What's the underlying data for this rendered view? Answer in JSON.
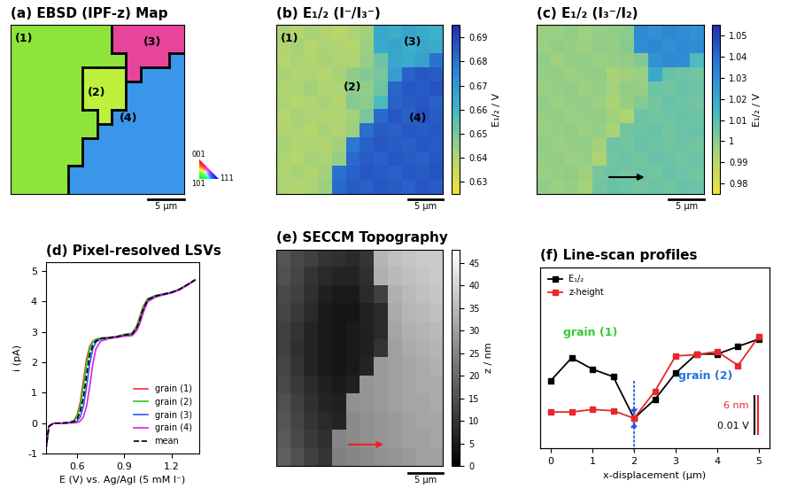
{
  "chart_data": [
    {
      "type": "heatmap",
      "title": "(a) EBSD (IPF-z) Map",
      "cells": [
        [
          1,
          1,
          1,
          1,
          1,
          1,
          1,
          3,
          3,
          3,
          3,
          3
        ],
        [
          1,
          1,
          1,
          1,
          1,
          1,
          1,
          3,
          3,
          3,
          3,
          3
        ],
        [
          1,
          1,
          1,
          1,
          1,
          1,
          1,
          1,
          3,
          3,
          3,
          4
        ],
        [
          1,
          1,
          1,
          1,
          1,
          2,
          2,
          2,
          3,
          4,
          4,
          4
        ],
        [
          1,
          1,
          1,
          1,
          1,
          2,
          2,
          2,
          4,
          4,
          4,
          4
        ],
        [
          1,
          1,
          1,
          1,
          1,
          2,
          2,
          2,
          4,
          4,
          4,
          4
        ],
        [
          1,
          1,
          1,
          1,
          1,
          1,
          2,
          4,
          4,
          4,
          4,
          4
        ],
        [
          1,
          1,
          1,
          1,
          1,
          1,
          4,
          4,
          4,
          4,
          4,
          4
        ],
        [
          1,
          1,
          1,
          1,
          1,
          4,
          4,
          4,
          4,
          4,
          4,
          4
        ],
        [
          1,
          1,
          1,
          1,
          1,
          4,
          4,
          4,
          4,
          4,
          4,
          4
        ],
        [
          1,
          1,
          1,
          1,
          4,
          4,
          4,
          4,
          4,
          4,
          4,
          4
        ],
        [
          1,
          1,
          1,
          1,
          4,
          4,
          4,
          4,
          4,
          4,
          4,
          4
        ]
      ],
      "colors": [
        "#8fe43c",
        "#bff03d",
        "#e6459b",
        "#3a96e8"
      ],
      "grain_labels": [
        "(1)",
        "(2)",
        "(3)",
        "(4)"
      ],
      "ipf_key": [
        "001",
        "101",
        "111"
      ],
      "xlim": [
        0,
        24
      ],
      "ylim": [
        0,
        22
      ],
      "tick_labels": false,
      "scale_bar": {
        "value": 5,
        "label": "5 μm"
      }
    },
    {
      "type": "heatmap",
      "title": "(b) E₁/₂ (I⁻/I₃⁻)",
      "cells": [
        [
          0.641,
          0.639,
          0.642,
          0.64,
          0.638,
          0.641,
          0.643,
          0.665,
          0.663,
          0.666,
          0.664,
          0.662
        ],
        [
          0.64,
          0.642,
          0.639,
          0.641,
          0.64,
          0.639,
          0.644,
          0.664,
          0.666,
          0.663,
          0.665,
          0.664
        ],
        [
          0.639,
          0.641,
          0.64,
          0.642,
          0.641,
          0.64,
          0.645,
          0.652,
          0.665,
          0.664,
          0.667,
          0.68
        ],
        [
          0.642,
          0.64,
          0.641,
          0.639,
          0.642,
          0.646,
          0.648,
          0.65,
          0.668,
          0.684,
          0.686,
          0.685
        ],
        [
          0.64,
          0.641,
          0.643,
          0.64,
          0.641,
          0.647,
          0.646,
          0.652,
          0.683,
          0.686,
          0.685,
          0.687
        ],
        [
          0.641,
          0.639,
          0.64,
          0.642,
          0.64,
          0.648,
          0.647,
          0.658,
          0.684,
          0.685,
          0.686,
          0.684
        ],
        [
          0.639,
          0.642,
          0.641,
          0.64,
          0.641,
          0.643,
          0.65,
          0.682,
          0.686,
          0.684,
          0.687,
          0.685
        ],
        [
          0.64,
          0.641,
          0.639,
          0.642,
          0.64,
          0.644,
          0.681,
          0.685,
          0.684,
          0.686,
          0.685,
          0.686
        ],
        [
          0.642,
          0.64,
          0.641,
          0.64,
          0.643,
          0.679,
          0.684,
          0.686,
          0.685,
          0.684,
          0.686,
          0.685
        ],
        [
          0.641,
          0.639,
          0.642,
          0.641,
          0.645,
          0.682,
          0.685,
          0.684,
          0.686,
          0.685,
          0.684,
          0.686
        ],
        [
          0.64,
          0.642,
          0.64,
          0.643,
          0.68,
          0.684,
          0.686,
          0.685,
          0.684,
          0.686,
          0.685,
          0.687
        ],
        [
          0.641,
          0.64,
          0.641,
          0.644,
          0.682,
          0.685,
          0.684,
          0.686,
          0.685,
          0.684,
          0.686,
          0.685
        ]
      ],
      "colorbar": {
        "label": "E₁/₂ / V",
        "range": [
          0.625,
          0.695
        ],
        "ticks": [
          0.63,
          0.64,
          0.65,
          0.66,
          0.67,
          0.68,
          0.69
        ]
      },
      "grain_labels": [
        "(1)",
        "(2)",
        "(3)",
        "(4)"
      ],
      "xlim": [
        0,
        24
      ],
      "ylim": [
        0,
        22
      ],
      "tick_labels": false,
      "scale_bar": {
        "value": 5,
        "label": "5 μm"
      }
    },
    {
      "type": "heatmap",
      "title": "(c) E₁/₂ (I₃⁻/I₂)",
      "cells": [
        [
          0.998,
          0.997,
          0.999,
          0.996,
          0.998,
          0.999,
          1.0,
          1.031,
          1.029,
          1.032,
          1.03,
          1.028
        ],
        [
          0.997,
          0.999,
          0.998,
          0.997,
          0.999,
          0.998,
          1.001,
          1.03,
          1.032,
          1.029,
          1.031,
          1.03
        ],
        [
          0.999,
          0.996,
          0.998,
          0.999,
          0.997,
          0.998,
          0.999,
          1.002,
          1.028,
          1.031,
          1.03,
          1.012
        ],
        [
          0.998,
          0.999,
          0.997,
          0.998,
          0.999,
          0.994,
          0.996,
          0.997,
          1.02,
          1.007,
          1.006,
          1.005
        ],
        [
          0.997,
          0.998,
          0.999,
          0.997,
          0.998,
          0.995,
          0.999,
          0.998,
          1.006,
          1.005,
          1.007,
          1.006
        ],
        [
          0.999,
          0.997,
          0.998,
          0.999,
          0.997,
          0.994,
          0.998,
          1.001,
          1.005,
          1.007,
          1.006,
          1.005
        ],
        [
          0.998,
          0.999,
          0.997,
          0.998,
          0.999,
          0.996,
          0.993,
          1.006,
          1.005,
          1.006,
          1.007,
          1.006
        ],
        [
          0.997,
          0.998,
          0.999,
          0.997,
          0.998,
          0.994,
          1.005,
          1.006,
          1.007,
          1.005,
          1.006,
          1.007
        ],
        [
          0.999,
          0.997,
          0.998,
          0.999,
          0.995,
          1.006,
          1.005,
          1.007,
          1.006,
          1.005,
          1.006,
          1.005
        ],
        [
          0.998,
          0.999,
          0.997,
          0.998,
          0.993,
          1.005,
          1.006,
          1.005,
          1.007,
          1.006,
          1.005,
          1.006
        ],
        [
          0.997,
          0.998,
          0.999,
          0.996,
          1.004,
          1.006,
          1.005,
          1.006,
          1.005,
          1.007,
          1.006,
          1.005
        ],
        [
          0.999,
          0.997,
          0.998,
          0.995,
          1.005,
          1.007,
          1.006,
          1.005,
          1.006,
          1.005,
          1.007,
          1.006
        ]
      ],
      "colorbar": {
        "label": "E₁/₂ / V",
        "range": [
          0.975,
          1.055
        ],
        "ticks": [
          0.98,
          0.99,
          1,
          1.01,
          1.02,
          1.03,
          1.04,
          1.05
        ]
      },
      "xlim": [
        0,
        24
      ],
      "ylim": [
        0,
        22
      ],
      "tick_labels": false,
      "scale_bar": {
        "value": 5,
        "label": "5 μm"
      }
    },
    {
      "type": "line",
      "title": "(d) Pixel-resolved LSVs",
      "x_label": "E (V) vs. Ag/AgI (5 mM I⁻)",
      "y_label": "i (pA)",
      "x": [
        0.4,
        0.42,
        0.45,
        0.5,
        0.55,
        0.58,
        0.6,
        0.62,
        0.64,
        0.66,
        0.68,
        0.7,
        0.72,
        0.75,
        0.8,
        0.85,
        0.9,
        0.95,
        0.98,
        1.0,
        1.02,
        1.05,
        1.1,
        1.15,
        1.2,
        1.25,
        1.3,
        1.35
      ],
      "series": [
        {
          "name": "grain (1)",
          "color": "#ff2a2a",
          "line_style": "solid",
          "values": [
            -0.9,
            -0.1,
            0,
            0,
            0.02,
            0.1,
            0.27,
            0.69,
            1.4,
            2.11,
            2.53,
            2.7,
            2.76,
            2.8,
            2.82,
            2.85,
            2.92,
            2.96,
            3.2,
            3.52,
            3.84,
            4.1,
            4.2,
            4.25,
            4.3,
            4.4,
            4.55,
            4.7
          ]
        },
        {
          "name": "grain (2)",
          "color": "#22cc22",
          "line_style": "solid",
          "values": [
            -0.9,
            -0.1,
            0,
            0,
            0.02,
            0.08,
            0.21,
            0.56,
            1.22,
            1.97,
            2.46,
            2.68,
            2.76,
            2.8,
            2.82,
            2.85,
            2.91,
            2.95,
            3.18,
            3.5,
            3.82,
            4.09,
            4.2,
            4.25,
            4.3,
            4.4,
            4.55,
            4.7
          ]
        },
        {
          "name": "grain (3)",
          "color": "#3355ff",
          "line_style": "solid",
          "values": [
            -0.9,
            -0.1,
            0,
            0,
            0.01,
            0.02,
            0.07,
            0.21,
            0.56,
            1.21,
            1.95,
            2.45,
            2.67,
            2.77,
            2.8,
            2.83,
            2.88,
            2.9,
            3.1,
            3.35,
            3.7,
            4.05,
            4.18,
            4.24,
            4.3,
            4.4,
            4.55,
            4.72
          ]
        },
        {
          "name": "grain (4)",
          "color": "#dd22dd",
          "line_style": "solid",
          "values": [
            -0.9,
            -0.1,
            0,
            0,
            0.01,
            0.01,
            0.02,
            0.07,
            0.21,
            0.56,
            1.21,
            1.95,
            2.45,
            2.7,
            2.78,
            2.82,
            2.86,
            2.88,
            3.05,
            3.28,
            3.62,
            4.0,
            4.15,
            4.22,
            4.28,
            4.38,
            4.53,
            4.7
          ]
        },
        {
          "name": "mean",
          "color": "#000000",
          "line_style": "dashed",
          "values": [
            -0.9,
            -0.1,
            0,
            0,
            0.02,
            0.05,
            0.14,
            0.38,
            0.85,
            1.6,
            2.25,
            2.58,
            2.71,
            2.78,
            2.81,
            2.84,
            2.9,
            2.93,
            3.14,
            3.42,
            3.75,
            4.06,
            4.18,
            4.24,
            4.3,
            4.4,
            4.55,
            4.71
          ]
        }
      ],
      "xlim": [
        0.4,
        1.38
      ],
      "ylim": [
        -1,
        5.3
      ],
      "xticks": [
        0.6,
        0.9,
        1.2
      ],
      "yticks": [
        -1,
        0,
        1,
        2,
        3,
        4,
        5
      ],
      "legend": "lower right"
    },
    {
      "type": "heatmap",
      "title": "(e) SECCM Topography",
      "cells": [
        [
          16,
          14,
          12,
          10,
          9,
          8,
          10,
          34,
          36,
          37,
          38,
          38
        ],
        [
          15,
          13,
          10,
          8,
          7,
          7,
          9,
          33,
          35,
          36,
          37,
          38
        ],
        [
          14,
          12,
          9,
          6,
          5,
          5,
          8,
          12,
          33,
          35,
          36,
          37
        ],
        [
          13,
          11,
          8,
          5,
          4,
          4,
          6,
          8,
          32,
          34,
          35,
          36
        ],
        [
          12,
          10,
          7,
          5,
          4,
          5,
          6,
          8,
          31,
          33,
          34,
          35
        ],
        [
          12,
          9,
          7,
          5,
          4,
          5,
          6,
          10,
          30,
          32,
          33,
          34
        ],
        [
          13,
          10,
          7,
          5,
          4,
          5,
          7,
          29,
          30,
          31,
          32,
          33
        ],
        [
          14,
          11,
          8,
          6,
          5,
          6,
          28,
          29,
          30,
          31,
          32,
          32
        ],
        [
          15,
          12,
          9,
          7,
          6,
          27,
          28,
          29,
          30,
          31,
          31,
          32
        ],
        [
          16,
          13,
          10,
          8,
          7,
          26,
          27,
          28,
          29,
          30,
          31,
          31
        ],
        [
          17,
          14,
          11,
          9,
          25,
          26,
          27,
          28,
          29,
          30,
          30,
          31
        ],
        [
          18,
          15,
          12,
          10,
          24,
          25,
          26,
          27,
          28,
          29,
          30,
          30
        ]
      ],
      "colorbar": {
        "label": "z / nm",
        "range": [
          0,
          48
        ],
        "ticks": [
          0,
          5,
          10,
          15,
          20,
          25,
          30,
          35,
          40,
          45
        ]
      },
      "xlim": [
        0,
        24
      ],
      "ylim": [
        0,
        22
      ],
      "tick_labels": false,
      "scale_bar": {
        "value": 5,
        "label": "5 μm"
      }
    },
    {
      "type": "line",
      "title": "(f) Line-scan profiles",
      "x_label": "x-displacement (μm)",
      "x": [
        0,
        0.5,
        1,
        1.5,
        2,
        2.5,
        3,
        3.5,
        4,
        4.5,
        5
      ],
      "series": [
        {
          "name": "E₁/₂",
          "color": "#000000",
          "marker": "square",
          "values": [
            1.0,
            1.006,
            1.003,
            1.001,
            0.99,
            0.995,
            1.002,
            1.007,
            1.007,
            1.009,
            1.011
          ]
        },
        {
          "name": "z-height",
          "color": "#e8262b",
          "marker": "square",
          "axis": "y2",
          "values": [
            6.0,
            6.0,
            6.4,
            6.2,
            5.0,
            9.3,
            14.9,
            15.1,
            15.6,
            13.4,
            18.0
          ]
        }
      ],
      "xlim": [
        -0.25,
        5.25
      ],
      "xticks": [
        0,
        1,
        2,
        3,
        4,
        5
      ],
      "ylim": [
        0.982,
        1.03
      ],
      "y2lim": [
        0.2,
        29.0
      ],
      "tick_labels": "x",
      "legend": "upper left",
      "scale_bar": {
        "y": 0.01,
        "y_label": "0.01 V",
        "y2": 6,
        "y2_label": "6 nm"
      },
      "annotations": [
        {
          "text": "grain (1)",
          "color": "#33cc33"
        },
        {
          "text": "grain (2)",
          "color": "#1f77e0"
        }
      ]
    }
  ]
}
